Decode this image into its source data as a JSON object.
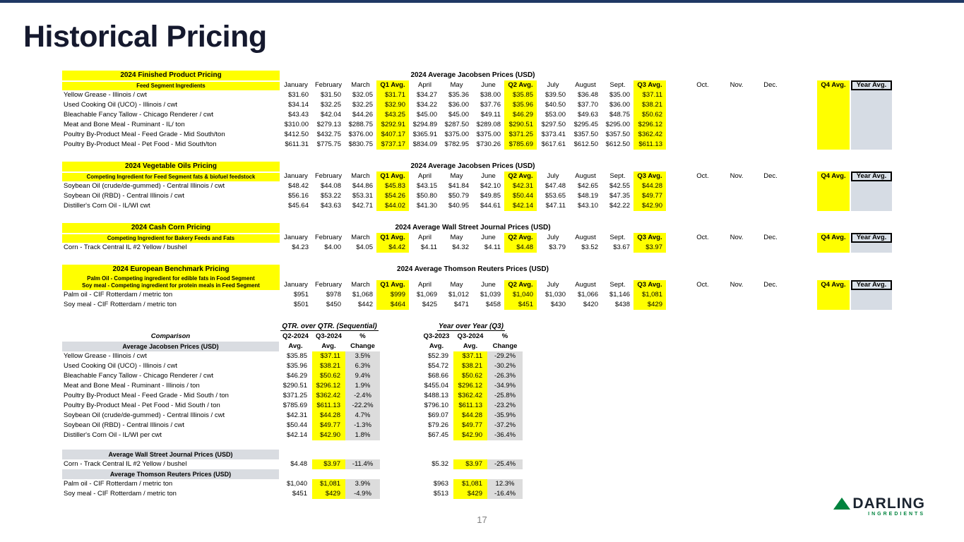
{
  "slide": {
    "title": "Historical Pricing",
    "page_number": "17"
  },
  "logo": {
    "name": "DARLING",
    "sub": "INGREDIENTS"
  },
  "colors": {
    "highlight_yellow": "#ffff00",
    "topbar_navy": "#1f3864",
    "gray_header_fill": "#d9dce1",
    "year_avg_fill": "#d6dce4",
    "logo_green": "#00833e",
    "logo_navy": "#1b2430"
  },
  "month_columns": [
    "January",
    "February",
    "March",
    "Q1 Avg.",
    "April",
    "May",
    "June",
    "Q2 Avg.",
    "July",
    "August",
    "Sept.",
    "Q3 Avg.",
    "Oct.",
    "Nov.",
    "Dec.",
    "Q4 Avg.",
    "Year Avg."
  ],
  "pricing_tables": [
    {
      "left_title": "2024 Finished Product Pricing",
      "left_subs": [
        "Feed Segment Ingredients"
      ],
      "center_title": "2024 Average Jacobsen Prices (USD)",
      "rows": [
        {
          "label": "Yellow Grease - Illinois / cwt",
          "values": [
            "$31.60",
            "$31.50",
            "$32.05",
            "$31.71",
            "$34.27",
            "$35.36",
            "$38.00",
            "$35.85",
            "$39.50",
            "$36.48",
            "$35.00",
            "$37.11"
          ]
        },
        {
          "label": "Used Cooking Oil (UCO) - Illinois / cwt",
          "values": [
            "$34.14",
            "$32.25",
            "$32.25",
            "$32.90",
            "$34.22",
            "$36.00",
            "$37.76",
            "$35.96",
            "$40.50",
            "$37.70",
            "$36.00",
            "$38.21"
          ]
        },
        {
          "label": "Bleachable Fancy Tallow - Chicago Renderer / cwt",
          "values": [
            "$43.43",
            "$42.04",
            "$44.26",
            "$43.25",
            "$45.00",
            "$45.00",
            "$49.11",
            "$46.29",
            "$53.00",
            "$49.63",
            "$48.75",
            "$50.62"
          ]
        },
        {
          "label": "Meat and Bone Meal - Ruminant - IL/ ton",
          "values": [
            "$310.00",
            "$279.13",
            "$288.75",
            "$292.91",
            "$294.89",
            "$287.50",
            "$289.08",
            "$290.51",
            "$297.50",
            "$295.45",
            "$295.00",
            "$296.12"
          ]
        },
        {
          "label": "Poultry By-Product Meal - Feed Grade - Mid South/ton",
          "values": [
            "$412.50",
            "$432.75",
            "$376.00",
            "$407.17",
            "$365.91",
            "$375.00",
            "$375.00",
            "$371.25",
            "$373.41",
            "$357.50",
            "$357.50",
            "$362.42"
          ]
        },
        {
          "label": "Poultry By-Product Meal - Pet Food - Mid South/ton",
          "values": [
            "$611.31",
            "$775.75",
            "$830.75",
            "$737.17",
            "$834.09",
            "$782.95",
            "$730.26",
            "$785.69",
            "$617.61",
            "$612.50",
            "$612.50",
            "$611.13"
          ]
        }
      ]
    },
    {
      "left_title": "2024 Vegetable Oils Pricing",
      "left_subs": [
        "Competing Ingredient for Feed Segment fats & biofuel feedstock"
      ],
      "center_title": "2024 Average Jacobsen Prices (USD)",
      "rows": [
        {
          "label": "Soybean Oil (crude/de-gummed) - Central Illinois / cwt",
          "values": [
            "$48.42",
            "$44.08",
            "$44.86",
            "$45.83",
            "$43.15",
            "$41.84",
            "$42.10",
            "$42.31",
            "$47.48",
            "$42.65",
            "$42.55",
            "$44.28"
          ]
        },
        {
          "label": "Soybean Oil (RBD) - Central Illinois / cwt",
          "values": [
            "$56.16",
            "$53.22",
            "$53.31",
            "$54.26",
            "$50.80",
            "$50.79",
            "$49.85",
            "$50.44",
            "$53.65",
            "$48.19",
            "$47.35",
            "$49.77"
          ]
        },
        {
          "label": "Distiller's Corn Oil - IL/WI cwt",
          "values": [
            "$45.64",
            "$43.63",
            "$42.71",
            "$44.02",
            "$41.30",
            "$40.95",
            "$44.61",
            "$42.14",
            "$47.11",
            "$43.10",
            "$42.22",
            "$42.90"
          ]
        }
      ]
    },
    {
      "left_title": "2024 Cash Corn Pricing",
      "left_subs": [
        "Competing Ingredient for Bakery Feeds and Fats"
      ],
      "center_title": "2024 Average Wall Street Journal Prices (USD)",
      "rows": [
        {
          "label": "Corn - Track Central IL #2 Yellow / bushel",
          "values": [
            "$4.23",
            "$4.00",
            "$4.05",
            "$4.42",
            "$4.11",
            "$4.32",
            "$4.11",
            "$4.48",
            "$3.79",
            "$3.52",
            "$3.67",
            "$3.97"
          ]
        }
      ]
    },
    {
      "left_title": "2024 European Benchmark Pricing",
      "left_subs": [
        "Palm Oil - Competing ingredient for edible fats in Food Segment",
        "Soy meal - Competing ingredient for protein meals in Feed Segment"
      ],
      "center_title": "2024 Average Thomson Reuters Prices (USD)",
      "rows": [
        {
          "label": "Palm oil - CIF Rotterdam / metric ton",
          "values": [
            "$951",
            "$978",
            "$1,068",
            "$999",
            "$1,069",
            "$1,012",
            "$1,039",
            "$1,040",
            "$1,030",
            "$1,066",
            "$1,146",
            "$1,081"
          ]
        },
        {
          "label": "Soy meal - CIF Rotterdam / metric ton",
          "values": [
            "$501",
            "$450",
            "$442",
            "$464",
            "$425",
            "$471",
            "$458",
            "$451",
            "$430",
            "$420",
            "$438",
            "$429"
          ]
        }
      ]
    }
  ],
  "comparison": {
    "left_header": "Comparison",
    "qtr": {
      "title": "QTR. over QTR. (Sequential)",
      "col_top": [
        "Q2-2024",
        "Q3-2024",
        "%"
      ],
      "col_bottom": [
        "Avg.",
        "Avg.",
        "Change"
      ]
    },
    "yoy": {
      "title": "Year over Year (Q3)",
      "col_top": [
        "Q3-2023",
        "Q3-2024",
        "%"
      ],
      "col_bottom": [
        "Avg.",
        "Avg.",
        "Change"
      ]
    },
    "sections": [
      {
        "header": "Average Jacobsen Prices (USD)",
        "rows": [
          {
            "label": "Yellow Grease - Illinois / cwt",
            "qtr": [
              "$35.85",
              "$37.11",
              "3.5%"
            ],
            "yoy": [
              "$52.39",
              "$37.11",
              "-29.2%"
            ]
          },
          {
            "label": "Used Cooking Oil (UCO) - Illinois / cwt",
            "qtr": [
              "$35.96",
              "$38.21",
              "6.3%"
            ],
            "yoy": [
              "$54.72",
              "$38.21",
              "-30.2%"
            ]
          },
          {
            "label": "Bleachable Fancy Tallow - Chicago Renderer / cwt",
            "qtr": [
              "$46.29",
              "$50.62",
              "9.4%"
            ],
            "yoy": [
              "$68.66",
              "$50.62",
              "-26.3%"
            ]
          },
          {
            "label": "Meat and Bone Meal - Ruminant - Illinois / ton",
            "qtr": [
              "$290.51",
              "$296.12",
              "1.9%"
            ],
            "yoy": [
              "$455.04",
              "$296.12",
              "-34.9%"
            ]
          },
          {
            "label": "Poultry By-Product Meal - Feed Grade - Mid South / ton",
            "qtr": [
              "$371.25",
              "$362.42",
              "-2.4%"
            ],
            "yoy": [
              "$488.13",
              "$362.42",
              "-25.8%"
            ]
          },
          {
            "label": "Poultry By-Product Meal - Pet Food - Mid South / ton",
            "qtr": [
              "$785.69",
              "$611.13",
              "-22.2%"
            ],
            "yoy": [
              "$796.10",
              "$611.13",
              "-23.2%"
            ]
          },
          {
            "label": "Soybean Oil (crude/de-gummed) - Central Illinois / cwt",
            "qtr": [
              "$42.31",
              "$44.28",
              "4.7%"
            ],
            "yoy": [
              "$69.07",
              "$44.28",
              "-35.9%"
            ]
          },
          {
            "label": "Soybean Oil (RBD) - Central Illinois / cwt",
            "qtr": [
              "$50.44",
              "$49.77",
              "-1.3%"
            ],
            "yoy": [
              "$79.26",
              "$49.77",
              "-37.2%"
            ]
          },
          {
            "label": "Distiller's Corn Oil - IL/WI per cwt",
            "qtr": [
              "$42.14",
              "$42.90",
              "1.8%"
            ],
            "yoy": [
              "$67.45",
              "$42.90",
              "-36.4%"
            ]
          }
        ]
      },
      {
        "header": "Average Wall Street Journal Prices (USD)",
        "rows": [
          {
            "label": "Corn - Track Central IL #2 Yellow / bushel",
            "qtr": [
              "$4.48",
              "$3.97",
              "-11.4%"
            ],
            "yoy": [
              "$5.32",
              "$3.97",
              "-25.4%"
            ]
          }
        ]
      },
      {
        "header": "Average Thomson Reuters Prices (USD)",
        "rows": [
          {
            "label": "Palm oil - CIF Rotterdam / metric ton",
            "qtr": [
              "$1,040",
              "$1,081",
              "3.9%"
            ],
            "yoy": [
              "$963",
              "$1,081",
              "12.3%"
            ]
          },
          {
            "label": "Soy meal - CIF Rotterdam / metric ton",
            "qtr": [
              "$451",
              "$429",
              "-4.9%"
            ],
            "yoy": [
              "$513",
              "$429",
              "-16.4%"
            ]
          }
        ]
      }
    ]
  }
}
